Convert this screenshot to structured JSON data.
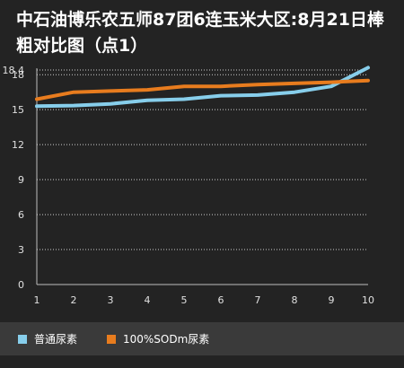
{
  "chart_data": {
    "type": "line",
    "title": "中石油博乐农五师87团6连玉米大区:8月21日棒粗对比图（点1）",
    "xlabel": "",
    "ylabel": "",
    "x": [
      1,
      2,
      3,
      4,
      5,
      6,
      7,
      8,
      9,
      10
    ],
    "ylim": [
      0,
      18.4
    ],
    "yticks": [
      0,
      3,
      6,
      9,
      12,
      15,
      18,
      18.4
    ],
    "xticks": [
      1,
      2,
      3,
      4,
      5,
      6,
      7,
      8,
      9,
      10
    ],
    "grid": "horizontal-dotted",
    "legend": "bottom",
    "series": [
      {
        "name": "普通尿素",
        "color": "#87ceeb",
        "values": [
          15.3,
          15.35,
          15.5,
          15.8,
          15.9,
          16.2,
          16.25,
          16.5,
          17.0,
          18.6
        ]
      },
      {
        "name": "100%SODm尿素",
        "color": "#e87c1e",
        "values": [
          15.9,
          16.5,
          16.6,
          16.7,
          17.0,
          17.0,
          17.15,
          17.25,
          17.35,
          17.5
        ]
      }
    ]
  }
}
